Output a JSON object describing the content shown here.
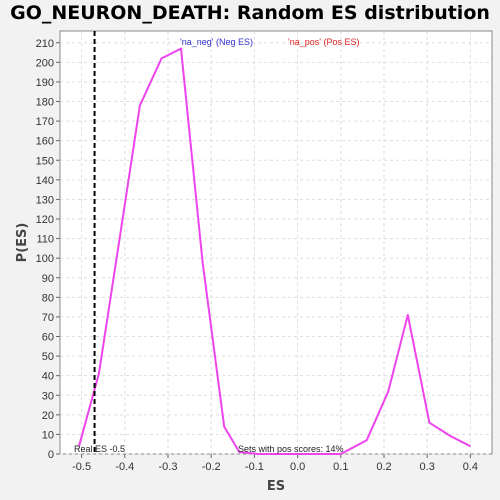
{
  "chart_data": {
    "type": "line",
    "title": "GO_NEURON_DEATH: Random ES distribution",
    "xlabel": "ES",
    "ylabel": "P(ES)",
    "xlim": [
      -0.55,
      0.45
    ],
    "ylim": [
      0,
      216
    ],
    "x_ticks": [
      "-0.5",
      "-0.4",
      "-0.3",
      "-0.2",
      "-0.1",
      "0.0",
      "0.1",
      "0.2",
      "0.3",
      "0.4"
    ],
    "y_ticks": [
      "0",
      "10",
      "20",
      "30",
      "40",
      "50",
      "60",
      "70",
      "80",
      "90",
      "100",
      "110",
      "120",
      "130",
      "140",
      "150",
      "160",
      "170",
      "180",
      "190",
      "200",
      "210"
    ],
    "grid": true,
    "legend": [
      {
        "label": "'na_neg' (Neg ES)",
        "color": "#3333cc"
      },
      {
        "label": "'na_pos' (Pos ES)",
        "color": "#dd2222"
      }
    ],
    "series": [
      {
        "color": "#ee44ee",
        "x": [
          -0.506,
          -0.46,
          -0.41,
          -0.365,
          -0.315,
          -0.27,
          -0.22,
          -0.17,
          -0.135,
          -0.09,
          -0.05,
          0.0,
          0.05,
          0.1,
          0.16,
          0.21,
          0.255,
          0.305,
          0.355,
          0.4
        ],
        "y": [
          4,
          41,
          113,
          178,
          202,
          207,
          98,
          14,
          1,
          0,
          0,
          0,
          0,
          0,
          7,
          32,
          71,
          16,
          9,
          4
        ]
      }
    ],
    "reference_line": {
      "x": -0.47,
      "label": "Real ES -0.5"
    },
    "annotation": "Sets with pos scores: 14%"
  }
}
